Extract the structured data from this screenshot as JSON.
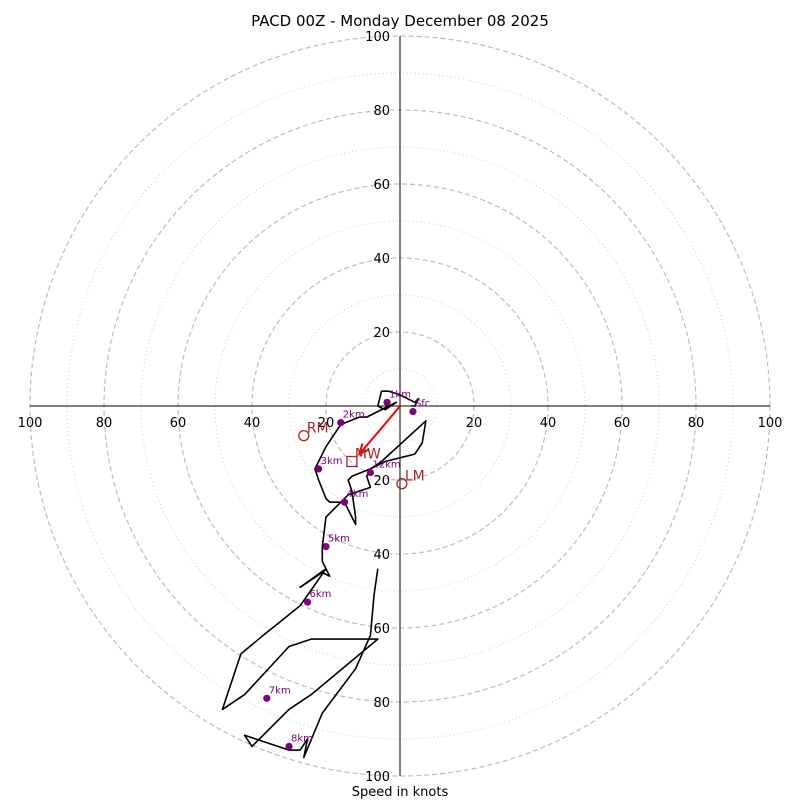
{
  "chart_data": {
    "type": "line",
    "title": "PACD 00Z - Monday December 08 2025",
    "xlabel": "Speed in knots",
    "ylabel": "",
    "xlim": [
      -100,
      100
    ],
    "ylim": [
      -100,
      100
    ],
    "grid": true,
    "ring_major": [
      20,
      40,
      60,
      80,
      100
    ],
    "ring_minor": [
      10,
      30,
      50,
      70,
      90
    ],
    "tick_labels": [
      "20",
      "40",
      "60",
      "80",
      "100"
    ],
    "colors": {
      "ring": "#bdbdbd",
      "profile": "#000000",
      "height_marker": "#800080",
      "motion": "#b22222",
      "shear_vector": "#ff0000"
    },
    "series": [
      {
        "style": "black-line",
        "x": [
          3,
          4,
          5,
          4,
          0,
          -3,
          -5,
          -6,
          -4,
          -1,
          -9,
          -11,
          -16,
          -18,
          -20,
          -21,
          -22,
          -23,
          -22,
          -20,
          -19,
          -15,
          -14,
          -12,
          -12,
          -13,
          -14,
          -13,
          -8,
          -4,
          0,
          4,
          6,
          7,
          -5,
          -8,
          -9,
          -8,
          -14,
          -20,
          -21,
          -21,
          -19,
          -21,
          -27,
          -20,
          -27,
          -32,
          -37,
          -43,
          -48,
          -42,
          -30,
          -24,
          -6,
          -24,
          -30,
          -34,
          -38,
          -40,
          -42,
          -33,
          -30,
          -27,
          -25,
          -26,
          -21,
          -12,
          -8,
          -7,
          -6
        ],
        "y": [
          0,
          0,
          2,
          1,
          3,
          4,
          4,
          0,
          -1,
          1,
          -3,
          -3,
          -5,
          -8,
          -11,
          -13,
          -15,
          -17,
          -20,
          -25,
          -26,
          -26,
          -28,
          -32,
          -30,
          -23,
          -20,
          -19,
          -17,
          -15,
          -14,
          -13,
          -10,
          -4,
          -15,
          -17,
          -19,
          -22,
          -24,
          -30,
          -38,
          -42,
          -46,
          -45,
          -49,
          -44,
          -54,
          -58,
          -62,
          -67,
          -82,
          -78,
          -65,
          -63,
          -63,
          -78,
          -82,
          -86,
          -90,
          -92,
          -89,
          -92,
          -93,
          -93,
          -90,
          -95,
          -83,
          -71,
          -62,
          -51,
          -44
        ]
      }
    ],
    "height_markers": [
      {
        "label": "Sfc",
        "x": 3.5,
        "y": -1.5
      },
      {
        "label": "1km",
        "x": -3.5,
        "y": 1
      },
      {
        "label": "2km",
        "x": -16,
        "y": -4.5
      },
      {
        "label": "3km",
        "x": -22,
        "y": -17
      },
      {
        "label": "4km",
        "x": -15,
        "y": -26
      },
      {
        "label": "5km",
        "x": -20,
        "y": -38
      },
      {
        "label": "6km",
        "x": -25,
        "y": -53
      },
      {
        "label": "7km",
        "x": -36,
        "y": -79
      },
      {
        "label": "8km",
        "x": -30,
        "y": -92
      },
      {
        "label": "12km",
        "x": -8,
        "y": -18
      }
    ],
    "storm_motion": [
      {
        "label": "RM",
        "x": -26,
        "y": -8
      },
      {
        "label": "LM",
        "x": 0.5,
        "y": -21
      },
      {
        "label": "MW",
        "x": -13,
        "y": -15
      }
    ],
    "shear_vector": {
      "x": [
        0,
        -5,
        -11
      ],
      "y": [
        0,
        -6,
        -13
      ]
    }
  }
}
